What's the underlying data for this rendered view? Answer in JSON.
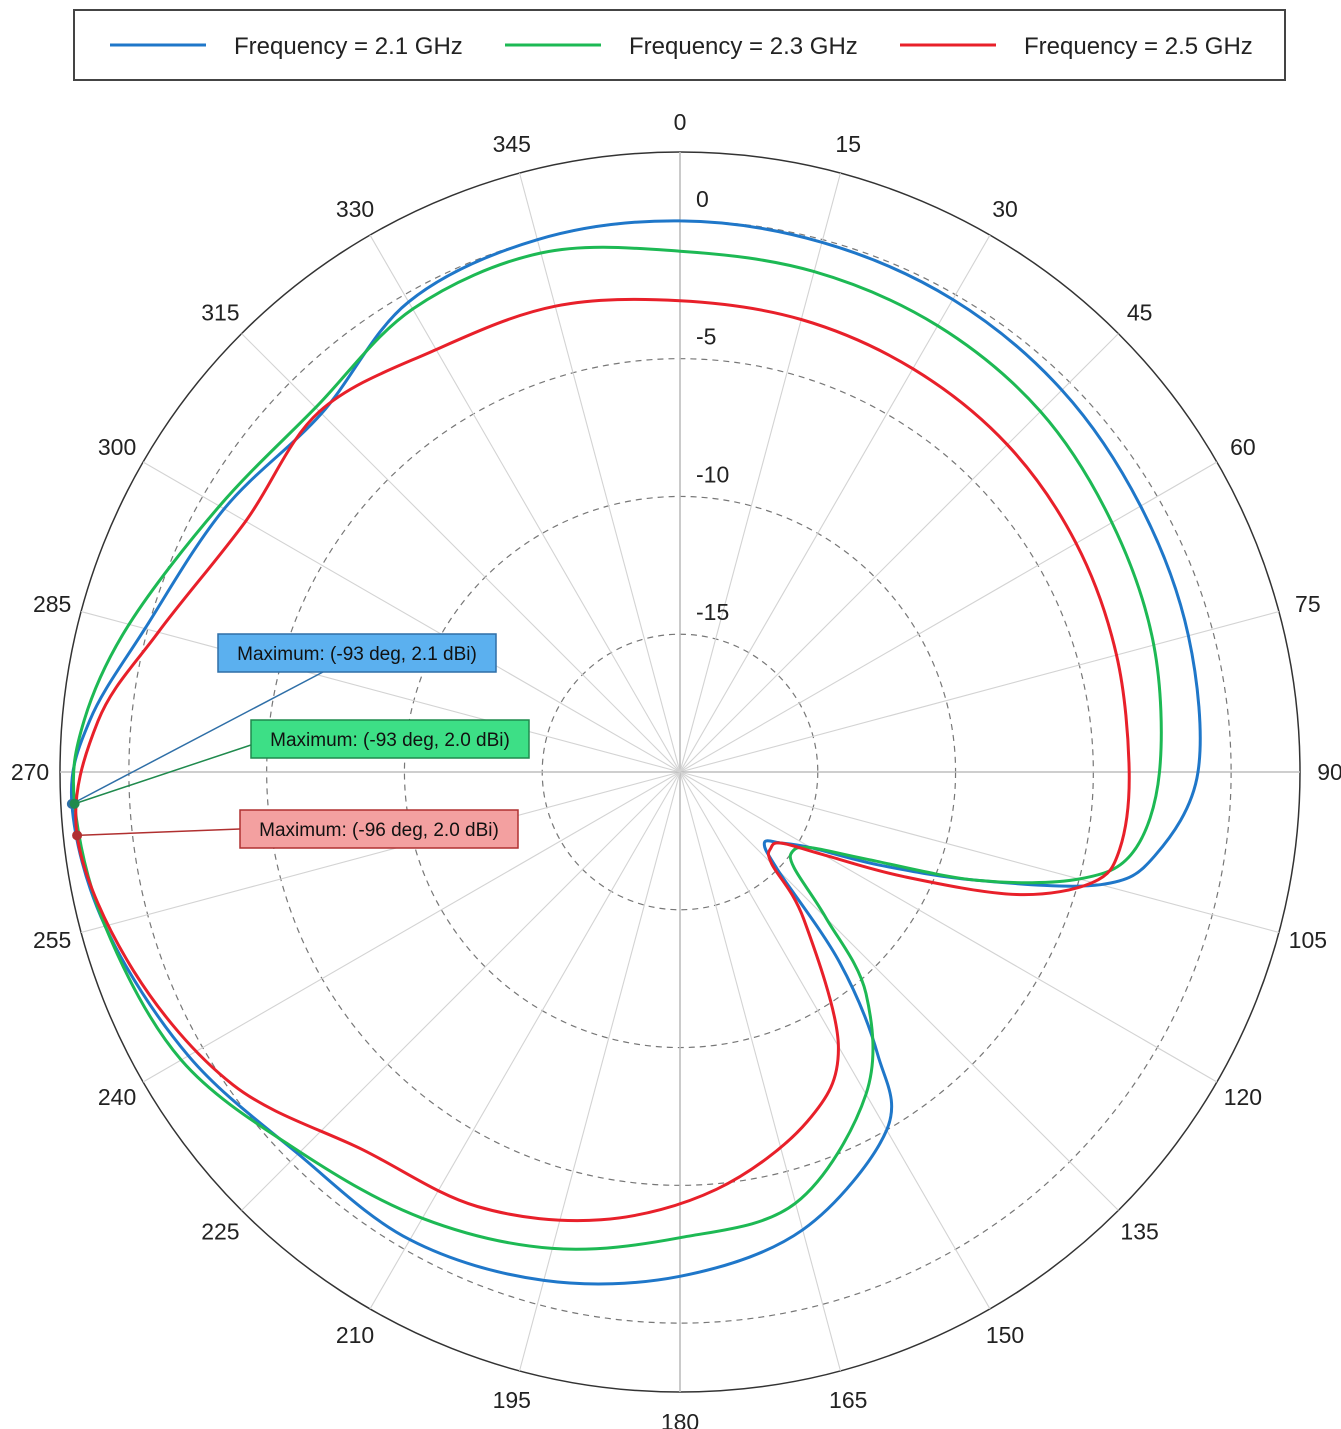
{
  "chart_data": {
    "type": "polar-line",
    "title": "",
    "angle_unit": "deg",
    "angle_ticks": [
      0,
      15,
      30,
      45,
      60,
      75,
      90,
      105,
      120,
      135,
      150,
      165,
      180,
      195,
      210,
      225,
      240,
      255,
      270,
      285,
      300,
      315,
      330,
      345
    ],
    "radial_ticks": [
      0,
      -5,
      -10,
      -15
    ],
    "rlim": [
      -20,
      2.5
    ],
    "grid": true,
    "legend_position": "top",
    "series": [
      {
        "name": "Frequency = 2.1 GHz",
        "color": "#1f77c9",
        "points": [
          [
            0,
            0.0
          ],
          [
            15,
            -0.1
          ],
          [
            30,
            -0.2
          ],
          [
            45,
            -0.4
          ],
          [
            60,
            -0.7
          ],
          [
            75,
            -0.9
          ],
          [
            90,
            -1.2
          ],
          [
            100,
            -2.5
          ],
          [
            105,
            -4.2
          ],
          [
            110,
            -8.5
          ],
          [
            115,
            -12
          ],
          [
            120,
            -14.5
          ],
          [
            125,
            -15.5
          ],
          [
            130,
            -16
          ],
          [
            135,
            -15
          ],
          [
            140,
            -11
          ],
          [
            145,
            -7.5
          ],
          [
            150,
            -5
          ],
          [
            165,
            -2.8
          ],
          [
            180,
            -1.7
          ],
          [
            195,
            -0.9
          ],
          [
            210,
            -0.4
          ],
          [
            225,
            -0.4
          ],
          [
            240,
            0.6
          ],
          [
            255,
            1.6
          ],
          [
            267,
            2.1
          ],
          [
            275,
            1.5
          ],
          [
            285,
            0.1
          ],
          [
            300,
            -0.9
          ],
          [
            315,
            -1.6
          ],
          [
            330,
            -0.3
          ],
          [
            345,
            0.0
          ]
        ]
      },
      {
        "name": "Frequency = 2.3 GHz",
        "color": "#1db954",
        "points": [
          [
            0,
            -1.1
          ],
          [
            15,
            -1.2
          ],
          [
            30,
            -1.3
          ],
          [
            45,
            -1.5
          ],
          [
            60,
            -1.9
          ],
          [
            75,
            -2.2
          ],
          [
            90,
            -2.6
          ],
          [
            100,
            -3.3
          ],
          [
            105,
            -5
          ],
          [
            110,
            -8.5
          ],
          [
            115,
            -12.5
          ],
          [
            120,
            -14.5
          ],
          [
            125,
            -15
          ],
          [
            130,
            -14.6
          ],
          [
            135,
            -12.5
          ],
          [
            140,
            -9.5
          ],
          [
            150,
            -6.5
          ],
          [
            165,
            -3.8
          ],
          [
            180,
            -3.1
          ],
          [
            195,
            -2.1
          ],
          [
            210,
            -1.3
          ],
          [
            225,
            -0.5
          ],
          [
            240,
            0.9
          ],
          [
            255,
            1.6
          ],
          [
            267,
            2.0
          ],
          [
            275,
            1.7
          ],
          [
            285,
            0.7
          ],
          [
            300,
            -0.7
          ],
          [
            315,
            -1.3
          ],
          [
            330,
            -0.6
          ],
          [
            345,
            -0.5
          ]
        ]
      },
      {
        "name": "Frequency = 2.5 GHz",
        "color": "#e8202a",
        "points": [
          [
            0,
            -2.9
          ],
          [
            15,
            -3.0
          ],
          [
            30,
            -3.1
          ],
          [
            45,
            -3.2
          ],
          [
            60,
            -3.4
          ],
          [
            75,
            -3.6
          ],
          [
            90,
            -3.7
          ],
          [
            100,
            -3.8
          ],
          [
            105,
            -4.5
          ],
          [
            110,
            -7
          ],
          [
            115,
            -11
          ],
          [
            120,
            -14
          ],
          [
            125,
            -15.5
          ],
          [
            130,
            -15.7
          ],
          [
            135,
            -15.3
          ],
          [
            140,
            -13
          ],
          [
            150,
            -8.5
          ],
          [
            160,
            -6.5
          ],
          [
            175,
            -4.8
          ],
          [
            190,
            -3.5
          ],
          [
            205,
            -2.6
          ],
          [
            220,
            -2.1
          ],
          [
            235,
            -0.2
          ],
          [
            250,
            1.1
          ],
          [
            264,
            2.0
          ],
          [
            275,
            1.2
          ],
          [
            285,
            -0.4
          ],
          [
            300,
            -1.8
          ],
          [
            315,
            -1.5
          ],
          [
            330,
            -2.3
          ],
          [
            345,
            -2.5
          ]
        ]
      }
    ],
    "annotations": [
      {
        "text": "Maximum: (-93 deg, 2.1 dBi)",
        "angle": 267,
        "value": 2.1,
        "series": 0,
        "bg": "#5bb0ef",
        "border": "#2f6fa7"
      },
      {
        "text": "Maximum: (-93 deg, 2.0 dBi)",
        "angle": 267,
        "value": 2.0,
        "series": 1,
        "bg": "#3ddf86",
        "border": "#1f8a4d"
      },
      {
        "text": "Maximum: (-96 deg, 2.0 dBi)",
        "angle": 264,
        "value": 2.0,
        "series": 2,
        "bg": "#f3a0a0",
        "border": "#b03030"
      }
    ]
  }
}
